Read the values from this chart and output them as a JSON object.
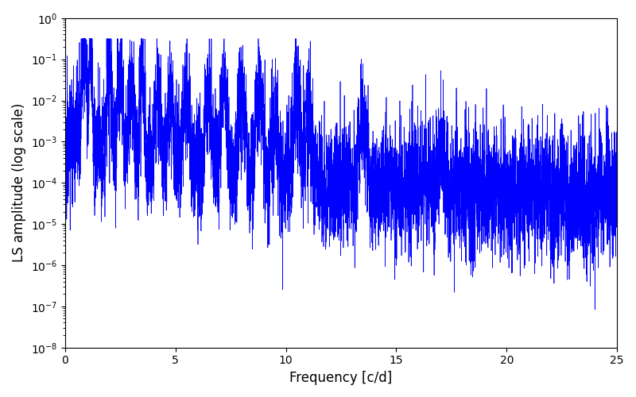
{
  "xlabel": "Frequency [c/d]",
  "ylabel": "LS amplitude (log scale)",
  "xlim": [
    0,
    25
  ],
  "ylim_log": [
    -8,
    0
  ],
  "line_color": "#0000ff",
  "line_width": 0.5,
  "figsize": [
    8.0,
    5.0
  ],
  "dpi": 100,
  "background_color": "#ffffff",
  "num_points": 8000,
  "seed": 42,
  "freq_max": 25.0
}
